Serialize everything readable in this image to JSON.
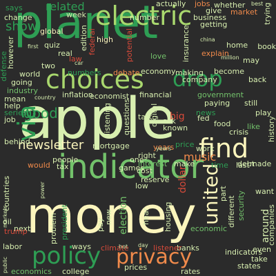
{
  "colors": {
    "background": "#2b2b2b",
    "palette": [
      "#2e9e54",
      "#73c26b",
      "#d8efb0",
      "#fbf5bd",
      "#f08a4b",
      "#d64a3a",
      "#a9d86e",
      "#7fbf6a"
    ]
  },
  "words": [
    {
      "text": "planet",
      "color": "#2e9e54"
    },
    {
      "text": "apple",
      "color": "#d8efb0"
    },
    {
      "text": "money",
      "color": "#fbf5bd"
    },
    {
      "text": "indicator",
      "color": "#73c26b"
    },
    {
      "text": "electric",
      "color": "#a9d86e"
    },
    {
      "text": "choices",
      "color": "#a9d86e"
    },
    {
      "text": "drop",
      "color": "#2e9e54"
    },
    {
      "text": "find",
      "color": "#fbf5bd"
    },
    {
      "text": "policy",
      "color": "#2e9e54"
    },
    {
      "text": "privacy",
      "color": "#f08a4b"
    },
    {
      "text": "newsletter",
      "color": "#fbf5bd"
    },
    {
      "text": "via",
      "color": "#2e9e54"
    },
    {
      "text": "show",
      "color": "#2e9e54"
    },
    {
      "text": "related",
      "color": "#2e9e54"
    },
    {
      "text": "good",
      "color": "#2e9e54"
    },
    {
      "text": "united",
      "color": "#fbf5bd"
    },
    {
      "text": "music",
      "color": "#f08a4b"
    },
    {
      "text": "economy",
      "color": "#d8efb0"
    },
    {
      "text": "inflation",
      "color": "#d8efb0"
    },
    {
      "text": "financial",
      "color": "#d8efb0"
    },
    {
      "text": "mortgage",
      "color": "#d8efb0"
    },
    {
      "text": "interest",
      "color": "#73c26b"
    },
    {
      "text": "reserve",
      "color": "#d8efb0"
    },
    {
      "text": "dollar",
      "color": "#d64a3a"
    },
    {
      "text": "economic",
      "color": "#73c26b"
    },
    {
      "text": "housing",
      "color": "#d8efb0"
    },
    {
      "text": "world",
      "color": "#d8efb0"
    },
    {
      "text": "industry",
      "color": "#73c26b"
    },
    {
      "text": "quiz",
      "color": "#d8efb0"
    },
    {
      "text": "global",
      "color": "#fbf5bd"
    },
    {
      "text": "high",
      "color": "#fbf5bd"
    },
    {
      "text": "week",
      "color": "#d8efb0"
    },
    {
      "text": "jobs",
      "color": "#f08a4b"
    },
    {
      "text": "give",
      "color": "#d8efb0"
    },
    {
      "text": "market",
      "color": "#f08a4b"
    },
    {
      "text": "whether",
      "color": "#d8efb0"
    },
    {
      "text": "business",
      "color": "#d8efb0"
    },
    {
      "text": "getting",
      "color": "#d8efb0"
    },
    {
      "text": "home",
      "color": "#d8efb0"
    },
    {
      "text": "explain",
      "color": "#f08a4b"
    },
    {
      "text": "become",
      "color": "#d8efb0"
    },
    {
      "text": "government",
      "color": "#73c26b"
    },
    {
      "text": "paying",
      "color": "#d8efb0"
    },
    {
      "text": "still",
      "color": "#d8efb0"
    },
    {
      "text": "company",
      "color": "#d8efb0"
    },
    {
      "text": "making",
      "color": "#d8efb0"
    },
    {
      "text": "debate",
      "color": "#f08a4b"
    },
    {
      "text": "economist",
      "color": "#d8efb0"
    },
    {
      "text": "numbers",
      "color": "#2e9e54"
    },
    {
      "text": "says",
      "color": "#2e9e54"
    },
    {
      "text": "two",
      "color": "#d8efb0"
    },
    {
      "text": "talk",
      "color": "#d8efb0"
    },
    {
      "text": "big",
      "color": "#d64a3a"
    },
    {
      "text": "years",
      "color": "#f08a4b"
    },
    {
      "text": "price",
      "color": "#2e9e54"
    },
    {
      "text": "work",
      "color": "#d8efb0"
    },
    {
      "text": "time",
      "color": "#2e9e54"
    },
    {
      "text": "last",
      "color": "#d8efb0"
    },
    {
      "text": "made",
      "color": "#d8efb0"
    },
    {
      "text": "like",
      "color": "#73c26b"
    },
    {
      "text": "people",
      "color": "#d8efb0"
    },
    {
      "text": "tax",
      "color": "#d8efb0"
    },
    {
      "text": "games",
      "color": "#d8efb0"
    },
    {
      "text": "one",
      "color": "#d8efb0"
    },
    {
      "text": "right",
      "color": "#d8efb0"
    },
    {
      "text": "low",
      "color": "#d8efb0"
    },
    {
      "text": "want",
      "color": "#d8efb0"
    },
    {
      "text": "president",
      "color": "#2e9e54"
    },
    {
      "text": "pay",
      "color": "#d8efb0"
    },
    {
      "text": "new",
      "color": "#d8efb0"
    },
    {
      "text": "election",
      "color": "#73c26b"
    },
    {
      "text": "hear",
      "color": "#d8efb0"
    },
    {
      "text": "ways",
      "color": "#d8efb0"
    },
    {
      "text": "next",
      "color": "#d8efb0"
    },
    {
      "text": "oil",
      "color": "#d8efb0"
    },
    {
      "text": "labor",
      "color": "#d8efb0"
    },
    {
      "text": "economics",
      "color": "#73c26b"
    },
    {
      "text": "college",
      "color": "#d8efb0"
    },
    {
      "text": "prices",
      "color": "#d8efb0"
    },
    {
      "text": "rates",
      "color": "#d8efb0"
    },
    {
      "text": "banks",
      "color": "#d8efb0"
    },
    {
      "text": "listener",
      "color": "#d64a3a"
    },
    {
      "text": "indicators",
      "color": "#d8efb0"
    },
    {
      "text": "states",
      "color": "#d8efb0"
    },
    {
      "text": "take",
      "color": "#d8efb0"
    },
    {
      "text": "even",
      "color": "#d8efb0"
    },
    {
      "text": "around",
      "color": "#d8efb0"
    },
    {
      "text": "companies",
      "color": "#d8efb0"
    },
    {
      "text": "country",
      "color": "#d8efb0"
    },
    {
      "text": "mean",
      "color": "#d8efb0"
    },
    {
      "text": "help",
      "color": "#d8efb0"
    },
    {
      "text": "series",
      "color": "#2e9e54"
    },
    {
      "text": "job",
      "color": "#d8efb0"
    },
    {
      "text": "behind",
      "color": "#d8efb0"
    },
    {
      "text": "countries",
      "color": "#d8efb0"
    },
    {
      "text": "change",
      "color": "#d8efb0"
    },
    {
      "text": "first",
      "color": "#d8efb0"
    },
    {
      "text": "federal",
      "color": "#d64a3a"
    },
    {
      "text": "law",
      "color": "#d64a3a"
    },
    {
      "text": "potential",
      "color": "#d64a3a"
    },
    {
      "text": "number",
      "color": "#d8efb0"
    },
    {
      "text": "actually",
      "color": "#d8efb0"
    },
    {
      "text": "love",
      "color": "#73c26b"
    },
    {
      "text": "insurance",
      "color": "#d8efb0"
    },
    {
      "text": "book",
      "color": "#d8efb0"
    },
    {
      "text": "history",
      "color": "#d8efb0"
    },
    {
      "text": "security",
      "color": "#73c26b"
    },
    {
      "text": "climate",
      "color": "#d64a3a"
    },
    {
      "text": "back",
      "color": "#d8efb0"
    },
    {
      "text": "news",
      "color": "#2e9e54"
    },
    {
      "text": "edition",
      "color": "#d8efb0"
    },
    {
      "text": "food",
      "color": "#d8efb0"
    },
    {
      "text": "crisis",
      "color": "#d8efb0"
    },
    {
      "text": "play",
      "color": "#d8efb0"
    },
    {
      "text": "going",
      "color": "#d8efb0"
    },
    {
      "text": "listening",
      "color": "#d8efb0"
    },
    {
      "text": "questions",
      "color": "#d8efb0"
    },
    {
      "text": "digital",
      "color": "#d8efb0"
    },
    {
      "text": "known",
      "color": "#d8efb0"
    },
    {
      "text": "cost",
      "color": "#d8efb0"
    },
    {
      "text": "make",
      "color": "#d8efb0"
    },
    {
      "text": "debt",
      "color": "#d8efb0"
    },
    {
      "text": "part",
      "color": "#d8efb0"
    },
    {
      "text": "different",
      "color": "#d8efb0"
    },
    {
      "text": "would",
      "color": "#f08a4b"
    },
    {
      "text": "problem",
      "color": "#d8efb0"
    },
    {
      "text": "markets",
      "color": "#d8efb0"
    },
    {
      "text": "power",
      "color": "#d8efb0"
    },
    {
      "text": "trump",
      "color": "#d64a3a"
    },
    {
      "text": "real",
      "color": "#d8efb0"
    },
    {
      "text": "ask",
      "color": "#d8efb0"
    },
    {
      "text": "fed",
      "color": "#d8efb0"
    },
    {
      "text": "hot",
      "color": "#d8efb0"
    },
    {
      "text": "day",
      "color": "#d8efb0"
    },
    {
      "text": "years",
      "color": "#d8efb0"
    },
    {
      "text": "public",
      "color": "#d8efb0"
    },
    {
      "text": "china",
      "color": "#d8efb0"
    },
    {
      "text": "million",
      "color": "#d8efb0"
    },
    {
      "text": "may",
      "color": "#d8efb0"
    },
    {
      "text": "best",
      "color": "#d8efb0"
    },
    {
      "text": "trying",
      "color": "#d8efb0"
    },
    {
      "text": "defense",
      "color": "#2e9e54"
    },
    {
      "text": "however",
      "color": "#d8efb0"
    },
    {
      "text": "car",
      "color": "#d8efb0"
    }
  ]
}
